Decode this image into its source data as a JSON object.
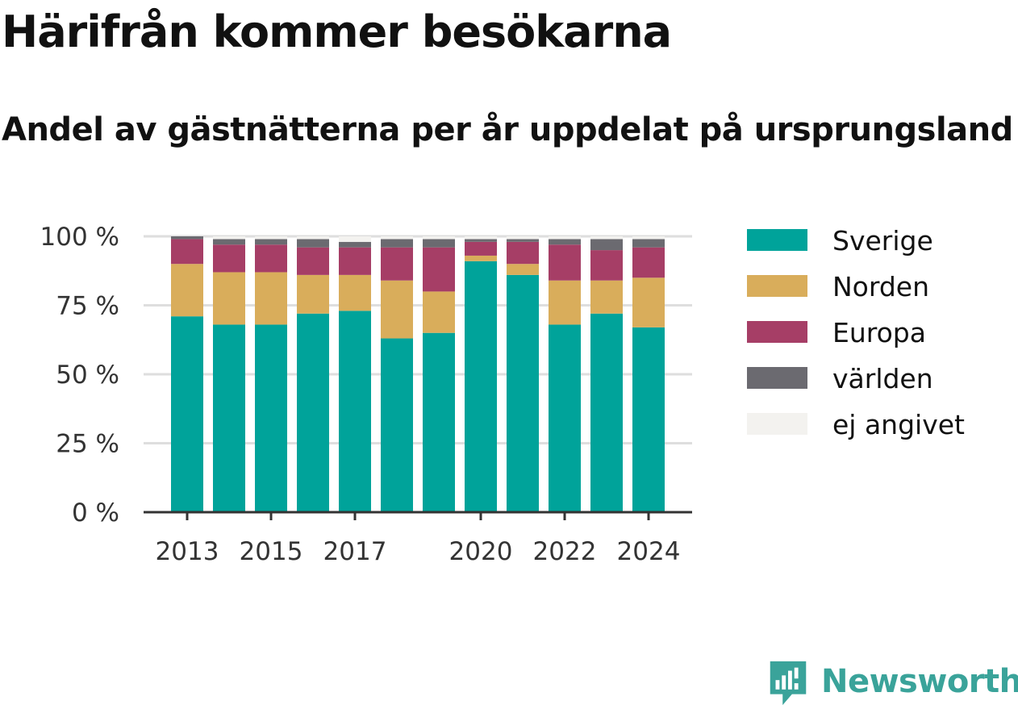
{
  "chart_title": "Härifrån kommer besökarna",
  "chart_subtitle": "Andel av gästnätterna per år uppdelat på ursprungsland",
  "brand": {
    "name": "Newsworthy",
    "color": "#3aa39a"
  },
  "chart_data": {
    "type": "bar",
    "stacked": true,
    "categories": [
      "2013",
      "2014",
      "2015",
      "2016",
      "2017",
      "2018",
      "2019",
      "2020",
      "2021",
      "2022",
      "2023",
      "2024"
    ],
    "x_tick_labels": [
      "2013",
      "2015",
      "2017",
      "2020",
      "2022",
      "2024"
    ],
    "y_ticks": [
      0,
      25,
      50,
      75,
      100
    ],
    "y_tick_labels": [
      "0 %",
      "25 %",
      "50 %",
      "75 %",
      "100 %"
    ],
    "ylim": [
      0,
      100
    ],
    "grid": true,
    "legend_position": "right",
    "series": [
      {
        "name": "Sverige",
        "color": "#00a39a",
        "values": [
          71,
          68,
          68,
          72,
          73,
          63,
          65,
          91,
          86,
          68,
          72,
          67
        ]
      },
      {
        "name": "Norden",
        "color": "#d9ad5b",
        "values": [
          19,
          19,
          19,
          14,
          13,
          21,
          15,
          2,
          4,
          16,
          12,
          18
        ]
      },
      {
        "name": "Europa",
        "color": "#a63e66",
        "values": [
          9,
          10,
          10,
          10,
          10,
          12,
          16,
          5,
          8,
          13,
          11,
          11
        ]
      },
      {
        "name": "världen",
        "color": "#6b6a70",
        "values": [
          1,
          2,
          2,
          3,
          2,
          3,
          3,
          1,
          1,
          2,
          4,
          3
        ]
      },
      {
        "name": "ej angivet",
        "color": "#f3f2ef",
        "values": [
          0,
          1,
          1,
          1,
          2,
          1,
          1,
          1,
          1,
          1,
          1,
          1
        ]
      }
    ]
  }
}
